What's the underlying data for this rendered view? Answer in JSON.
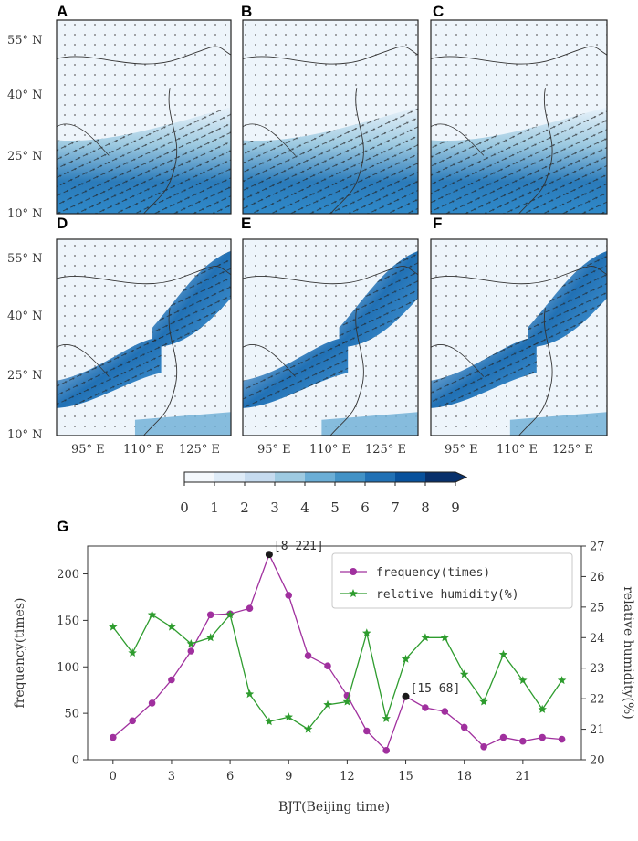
{
  "figure_panels": {
    "labels": [
      "A",
      "B",
      "C",
      "D",
      "E",
      "F",
      "G"
    ],
    "map_lat_ticks": [
      "55° N",
      "40° N",
      "25° N",
      "10° N"
    ],
    "map_lon_ticks": [
      "95° E",
      "110° E",
      "125° E"
    ],
    "colorbar": {
      "ticks": [
        "0",
        "1",
        "2",
        "3",
        "4",
        "5",
        "6",
        "7",
        "8",
        "9"
      ],
      "colors": [
        "#f4f8fc",
        "#deebf7",
        "#c6dbef",
        "#9ecae1",
        "#6baed6",
        "#4292c6",
        "#2171b5",
        "#08519c",
        "#08306b"
      ]
    }
  },
  "chart_data": {
    "type": "line",
    "title": "",
    "xlabel": "BJT(Beijing time)",
    "ylabel": "frequency(times)",
    "y2label": "relative humidity(%)",
    "x": [
      0,
      1,
      2,
      3,
      4,
      5,
      6,
      7,
      8,
      9,
      10,
      11,
      12,
      13,
      14,
      15,
      16,
      17,
      18,
      19,
      20,
      21,
      22,
      23
    ],
    "xticks": [
      0,
      3,
      6,
      9,
      12,
      15,
      18,
      21
    ],
    "xlim": [
      -1.3,
      24
    ],
    "ylim": [
      0,
      230
    ],
    "yticks": [
      0,
      50,
      100,
      150,
      200
    ],
    "y2lim": [
      20,
      27
    ],
    "y2ticks": [
      20,
      21,
      22,
      23,
      24,
      25,
      26,
      27
    ],
    "series": [
      {
        "name": "frequency(times)",
        "axis": "left",
        "color": "#a0309e",
        "marker": "circle",
        "values": [
          24,
          42,
          61,
          86,
          117,
          156,
          157,
          163,
          221,
          177,
          112,
          101,
          69,
          31,
          10,
          68,
          56,
          52,
          35,
          14,
          24,
          20,
          24,
          22
        ]
      },
      {
        "name": "relative humidity(%)",
        "axis": "right",
        "color": "#2e9c2e",
        "marker": "star",
        "values": [
          24.35,
          23.5,
          24.75,
          24.35,
          23.8,
          24.0,
          24.75,
          22.15,
          21.25,
          21.4,
          21.0,
          21.8,
          21.9,
          24.15,
          21.35,
          23.3,
          24.0,
          24.0,
          22.8,
          21.9,
          23.45,
          22.6,
          21.65,
          22.6
        ]
      }
    ],
    "annotations": [
      {
        "text": "[8 221]",
        "x": 8,
        "y": 221
      },
      {
        "text": "[15 68]",
        "x": 15,
        "y": 68
      }
    ],
    "legend": "top-right"
  }
}
